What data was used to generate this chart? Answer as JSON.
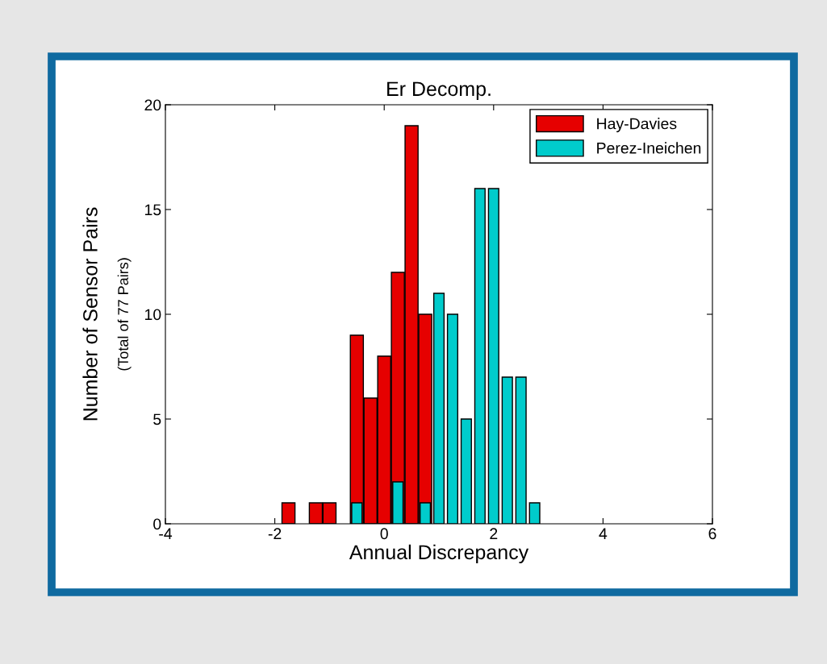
{
  "chart_data": {
    "type": "histogram",
    "title": "Er Decomp.",
    "xlabel": "Annual Discrepancy",
    "ylabel": "Number of Sensor Pairs",
    "annotations": [
      "(Total of 77 Pairs)"
    ],
    "bins": [
      -1.875,
      -1.625,
      -1.375,
      -1.125,
      -0.875,
      -0.625,
      -0.375,
      -0.125,
      0.125,
      0.375,
      0.625,
      0.875,
      1.125,
      1.375,
      1.625,
      1.875,
      2.125,
      2.375,
      2.625,
      2.875
    ],
    "series": [
      {
        "name": "Hay-Davies",
        "color": "#e60000",
        "values": [
          1,
          0,
          1,
          1,
          0,
          9,
          6,
          8,
          12,
          19,
          10,
          null,
          null,
          null,
          null,
          null,
          null,
          null,
          null
        ]
      },
      {
        "name": "Perez-Ineichen",
        "color": "#00cccc",
        "values": [
          0,
          0,
          0,
          0,
          0,
          1,
          0,
          0,
          2,
          0,
          1,
          11,
          10,
          5,
          16,
          16,
          7,
          7,
          1
        ]
      }
    ],
    "xlim": [
      -4,
      6
    ],
    "xticks": [
      -4,
      -2,
      0,
      2,
      4,
      6
    ],
    "ylim": [
      0,
      20
    ],
    "yticks": [
      0,
      5,
      10,
      15,
      20
    ],
    "grid": false,
    "legend": "top right"
  }
}
